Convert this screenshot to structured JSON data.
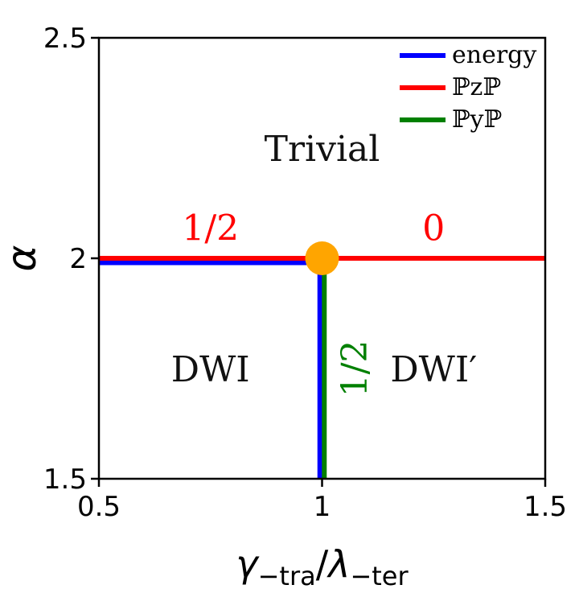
{
  "chart_data": {
    "type": "line",
    "title": "",
    "xlabel": {
      "parts": [
        {
          "text": "γ",
          "style": "italic"
        },
        {
          "text": "−tra",
          "style": "subscript"
        },
        {
          "text": "/",
          "style": "normal"
        },
        {
          "text": "λ",
          "style": "italic"
        },
        {
          "text": "−ter",
          "style": "subscript"
        }
      ]
    },
    "ylabel": "α",
    "xlim": [
      0.5,
      1.5
    ],
    "ylim": [
      1.5,
      2.5
    ],
    "x_ticks": [
      {
        "value": 0.5,
        "label": "0.5"
      },
      {
        "value": 1,
        "label": "1"
      },
      {
        "value": 1.5,
        "label": "1.5"
      }
    ],
    "y_ticks": [
      {
        "value": 1.5,
        "label": "1.5"
      },
      {
        "value": 2,
        "label": "2"
      },
      {
        "value": 2.5,
        "label": "2.5"
      }
    ],
    "grid": false,
    "legend_position": "top-right",
    "colors": {
      "energy": "#0000ff",
      "pzp": "#ff0000",
      "pyp": "#008000",
      "point": "#ffa500"
    },
    "series": [
      {
        "name": "energy",
        "color": "#0000ff",
        "segments": [
          [
            [
              0.5,
              1.99
            ],
            [
              0.995,
              1.99
            ]
          ],
          [
            [
              0.995,
              1.99
            ],
            [
              0.995,
              1.5
            ]
          ]
        ]
      },
      {
        "name": "ℙzℙ",
        "color": "#ff0000",
        "segments": [
          [
            [
              0.5,
              2.0
            ],
            [
              1.5,
              2.0
            ]
          ]
        ]
      },
      {
        "name": "ℙyℙ",
        "color": "#008000",
        "segments": [
          [
            [
              1.005,
              2.0
            ],
            [
              1.005,
              1.5
            ]
          ]
        ]
      }
    ],
    "points": [
      {
        "x": 1,
        "y": 2,
        "color": "#ffa500"
      }
    ],
    "regions": [
      {
        "label": "Trivial",
        "x": 1.0,
        "y": 2.25
      },
      {
        "label": "DWI",
        "x": 0.75,
        "y": 1.75
      },
      {
        "label": "DWI′",
        "x": 1.25,
        "y": 1.75
      }
    ],
    "annotations": [
      {
        "text": "1/2",
        "x": 0.75,
        "y": 2.07,
        "color": "#ff0000",
        "rotation": 0
      },
      {
        "text": "0",
        "x": 1.25,
        "y": 2.07,
        "color": "#ff0000",
        "rotation": 0
      },
      {
        "text": "1/2",
        "x": 1.075,
        "y": 1.75,
        "color": "#008000",
        "rotation": -90
      }
    ]
  }
}
